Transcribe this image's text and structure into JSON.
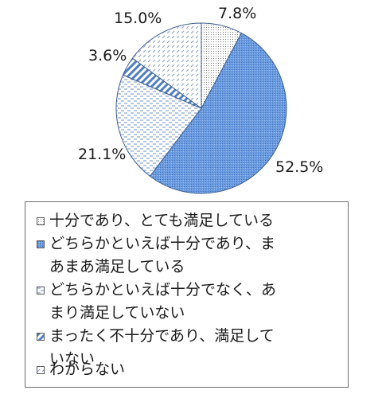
{
  "chart_data": {
    "type": "pie",
    "categories": [
      "十分であり、とても満足している",
      "どちらかといえば十分であり、まあまあ満足している",
      "どちらかといえば十分でなく、あまり満足していない",
      "まったく不十分であり、満足していない",
      "わからない"
    ],
    "values": [
      7.8,
      52.5,
      21.1,
      3.6,
      15.0
    ],
    "data_labels": [
      "7.8%",
      "52.5%",
      "21.1%",
      "3.6%",
      "15.0%"
    ],
    "title": "",
    "legend_position": "bottom",
    "colors": [
      "#ffffff",
      "#5b8fd6",
      "#ffffff",
      "#ffffff",
      "#ffffff"
    ],
    "patterns": [
      "fine-dots",
      "dense-dots-blue",
      "dashes",
      "diagonal-stripes-blue",
      "dashed-diagonal"
    ]
  },
  "legend": {
    "items": [
      {
        "label": "十分であり、とても満足している"
      },
      {
        "label": "どちらかといえば十分であり、ま\nあまあ満足している"
      },
      {
        "label": "どちらかといえば十分でなく、あ\nまり満足していない"
      },
      {
        "label": "まったく不十分であり、満足して\nいない"
      },
      {
        "label": "わからない"
      }
    ]
  }
}
